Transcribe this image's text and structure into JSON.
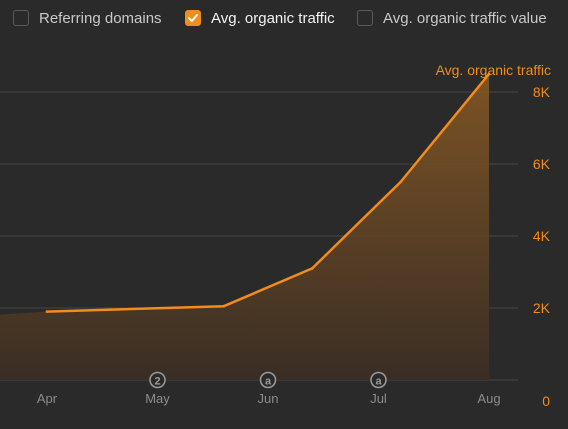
{
  "legend": {
    "items": [
      {
        "label": "Referring domains",
        "checked": false
      },
      {
        "label": "Avg. organic traffic",
        "checked": true
      },
      {
        "label": "Avg. organic traffic value",
        "checked": false
      }
    ]
  },
  "colors": {
    "accent": "#f28c1b",
    "background": "#2a2a2a",
    "grid": "#474747",
    "muted_text": "#8c8c8c",
    "marker": "#9a9a9a"
  },
  "chart_data": {
    "type": "area",
    "y_axis_title": "Avg. organic traffic",
    "y_axis_side": "right",
    "ylim": [
      0,
      8000
    ],
    "y_ticks": [
      0,
      2000,
      4000,
      6000,
      8000
    ],
    "y_tick_labels": [
      "0",
      "2K",
      "4K",
      "6K",
      "8K"
    ],
    "x_tick_labels": [
      "Apr",
      "May",
      "Jun",
      "Jul",
      "Aug"
    ],
    "x_tick_positions": [
      0,
      1,
      2,
      3,
      4
    ],
    "grid": true,
    "series": [
      {
        "name": "Avg. organic traffic",
        "x": [
          0,
          1.6,
          2.4,
          3.2,
          4
        ],
        "y": [
          1900,
          2050,
          3100,
          5500,
          8500
        ]
      }
    ],
    "annotations": [
      {
        "x": 1,
        "label": "2"
      },
      {
        "x": 2,
        "label": "a"
      },
      {
        "x": 3,
        "label": "a"
      }
    ]
  }
}
